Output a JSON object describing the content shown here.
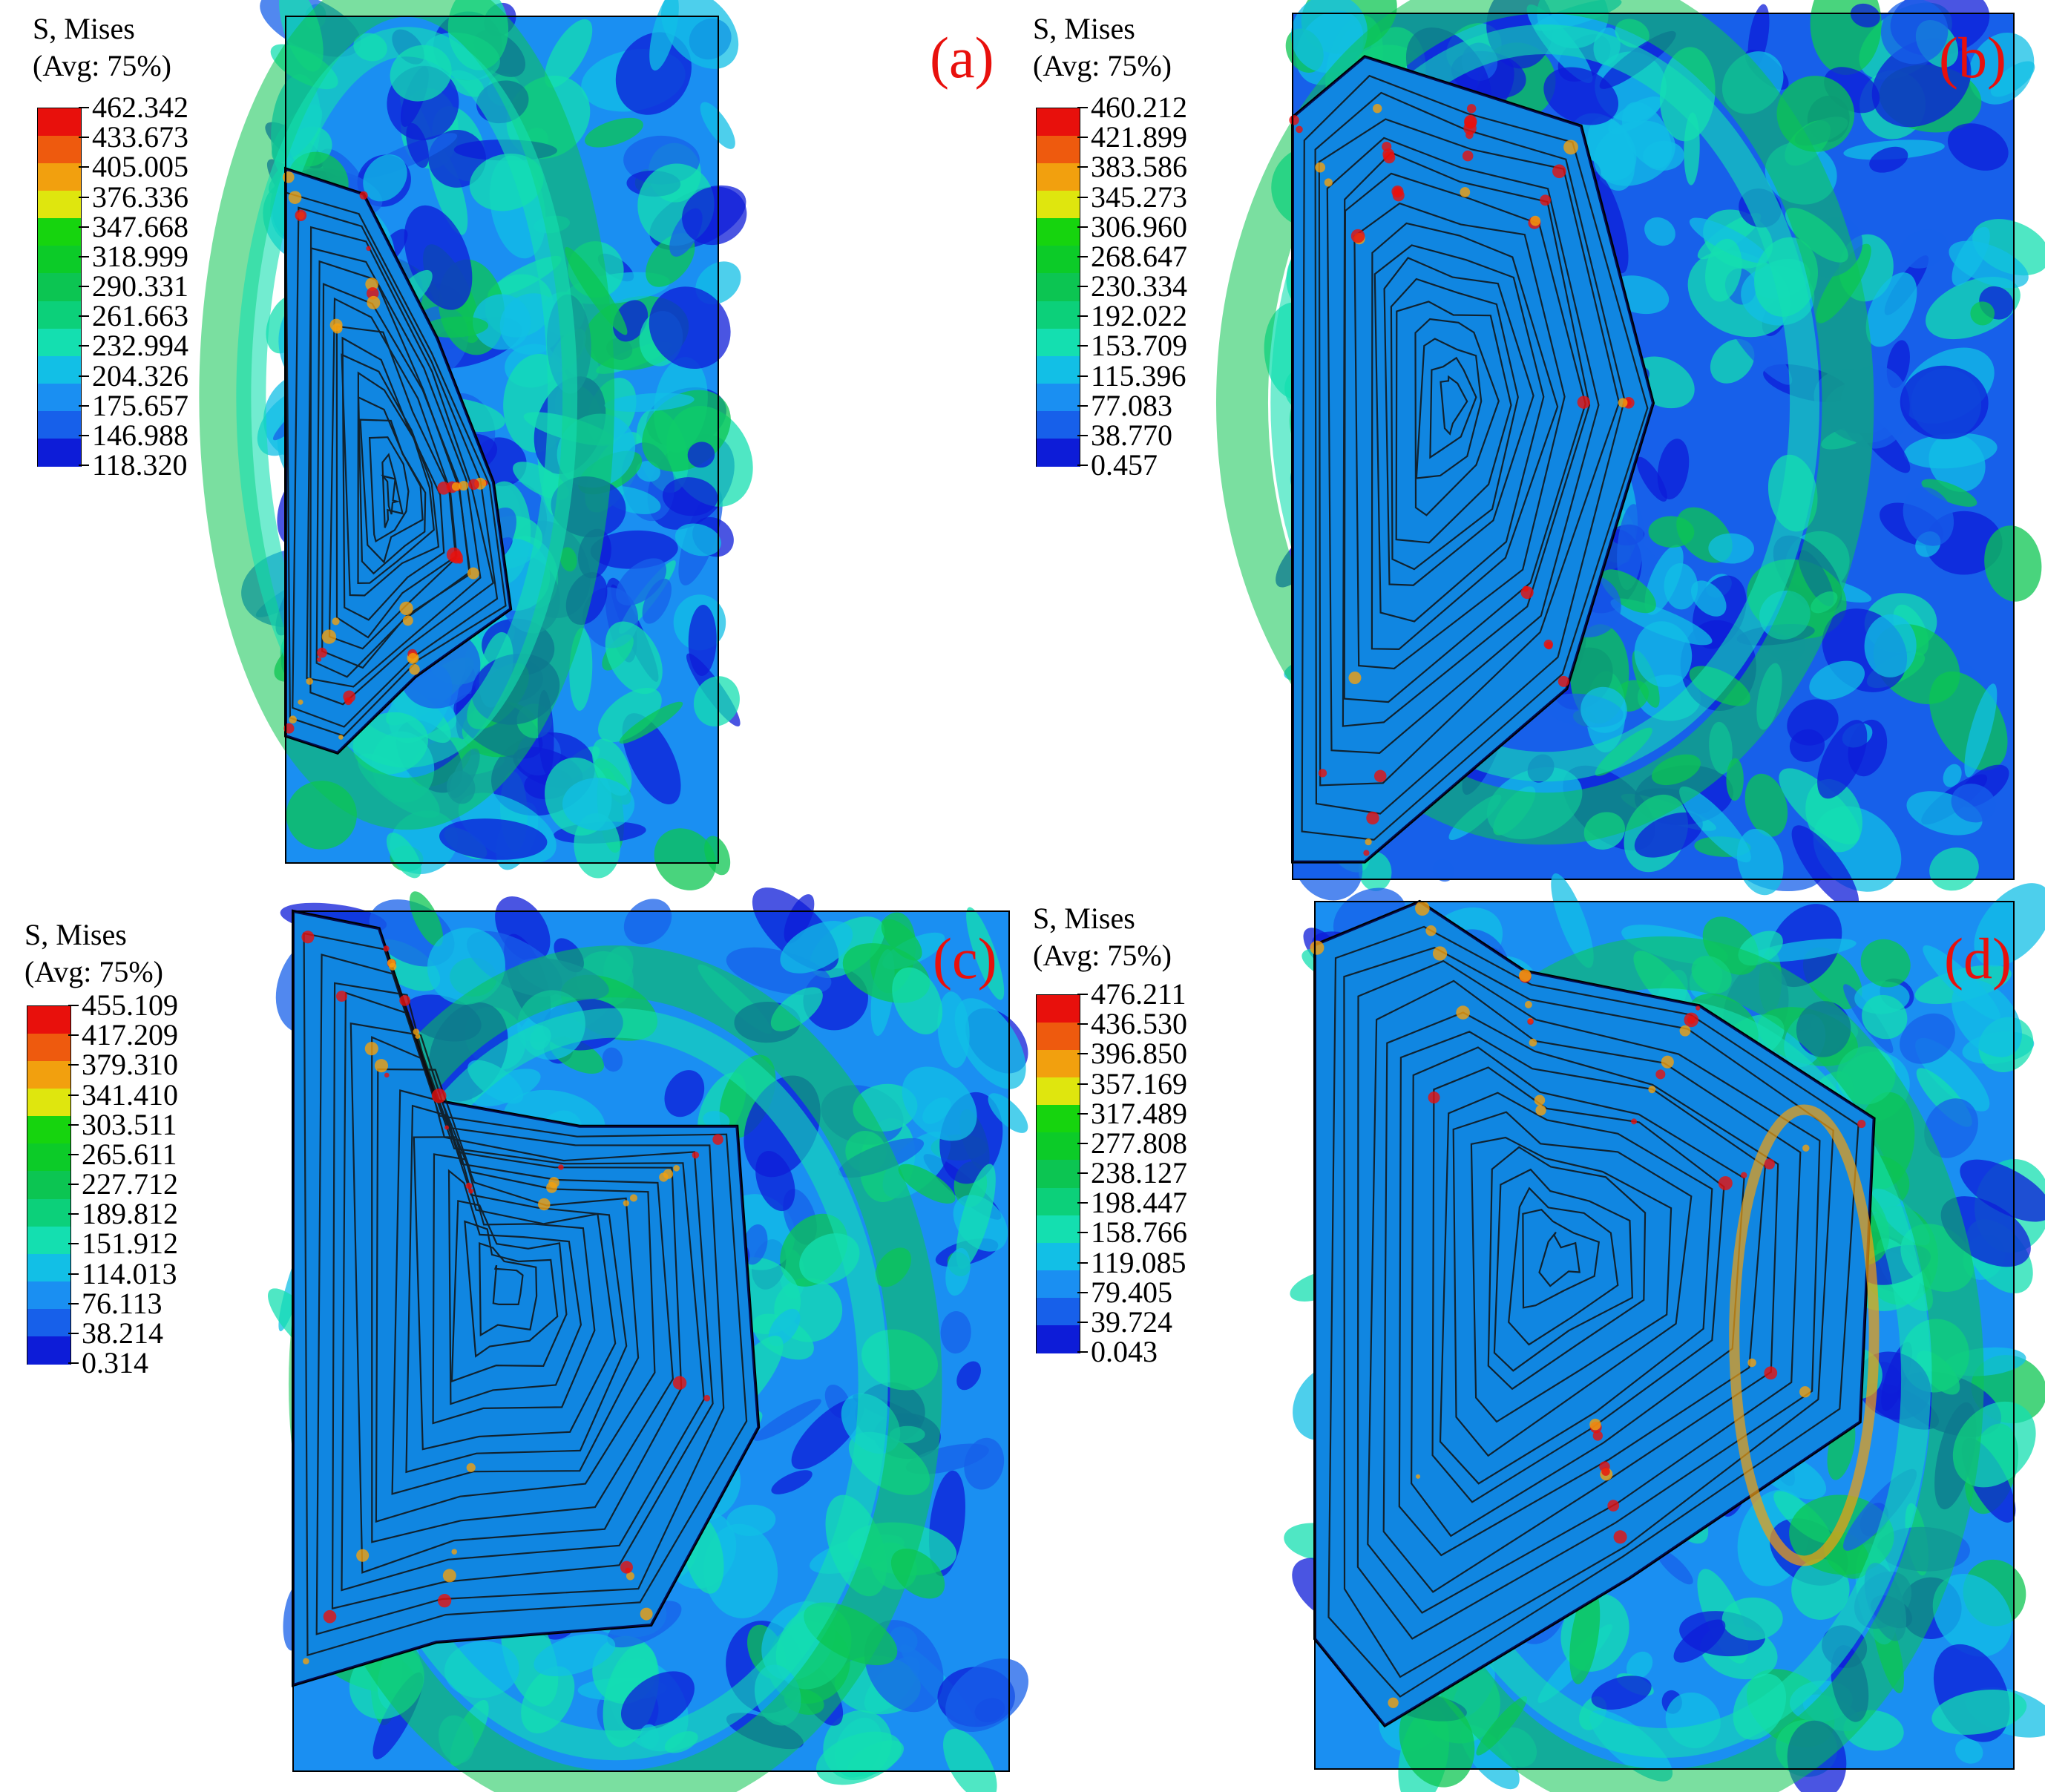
{
  "colormap": [
    "#e8100c",
    "#ee5a0e",
    "#f2a00e",
    "#dfe60e",
    "#16d40e",
    "#0ccb28",
    "#0cc552",
    "#0cd07a",
    "#14dfb0",
    "#12bfe6",
    "#1a8ff2",
    "#1760ea",
    "#0d1cd8"
  ],
  "contour_color": "#111111",
  "panels": [
    {
      "tag": "(a)",
      "legend_title_1": "S, Mises",
      "legend_title_2": "(Avg: 75%)",
      "levels": [
        "462.342",
        "433.673",
        "405.005",
        "376.336",
        "347.668",
        "318.999",
        "290.331",
        "261.663",
        "232.994",
        "204.326",
        "175.657",
        "146.988",
        "118.320"
      ]
    },
    {
      "tag": "(b)",
      "legend_title_1": "S, Mises",
      "legend_title_2": "(Avg: 75%)",
      "levels": [
        "460.212",
        "421.899",
        "383.586",
        "345.273",
        "306.960",
        "268.647",
        "230.334",
        "192.022",
        "153.709",
        "115.396",
        "77.083",
        "38.770",
        "0.457"
      ]
    },
    {
      "tag": "(c)",
      "legend_title_1": "S, Mises",
      "legend_title_2": "(Avg: 75%)",
      "levels": [
        "455.109",
        "417.209",
        "379.310",
        "341.410",
        "303.511",
        "265.611",
        "227.712",
        "189.812",
        "151.912",
        "114.013",
        "76.113",
        "38.214",
        "0.314"
      ]
    },
    {
      "tag": "(d)",
      "legend_title_1": "S, Mises",
      "legend_title_2": "(Avg: 75%)",
      "levels": [
        "476.211",
        "436.530",
        "396.850",
        "357.169",
        "317.489",
        "277.808",
        "238.127",
        "198.447",
        "158.766",
        "119.085",
        "79.405",
        "39.724",
        "0.043"
      ]
    }
  ]
}
